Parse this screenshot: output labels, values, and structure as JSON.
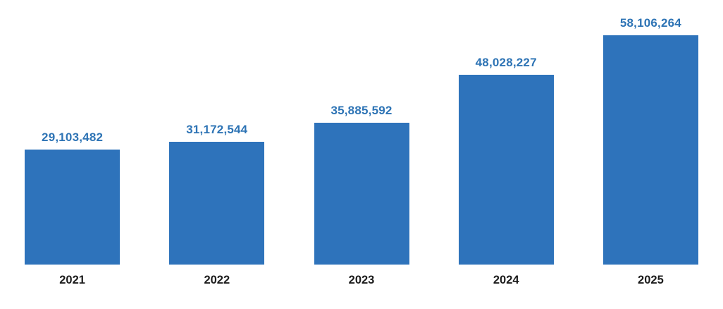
{
  "chart_data": {
    "type": "bar",
    "categories": [
      "2021",
      "2022",
      "2023",
      "2024",
      "2025"
    ],
    "values": [
      29103482,
      31172544,
      35885592,
      48028227,
      58106264
    ],
    "value_labels": [
      "29,103,482",
      "31,172,544",
      "35,885,592",
      "48,028,227",
      "58,106,264"
    ],
    "title": "",
    "xlabel": "",
    "ylabel": "",
    "ylim": [
      0,
      58106264
    ],
    "grid": false,
    "legend": null,
    "axes_visible": false,
    "bar_color": "#2e73bb",
    "value_label_color": "#2e74b5",
    "category_label_color": "#1b1b1b",
    "background_color": "#ffffff"
  }
}
